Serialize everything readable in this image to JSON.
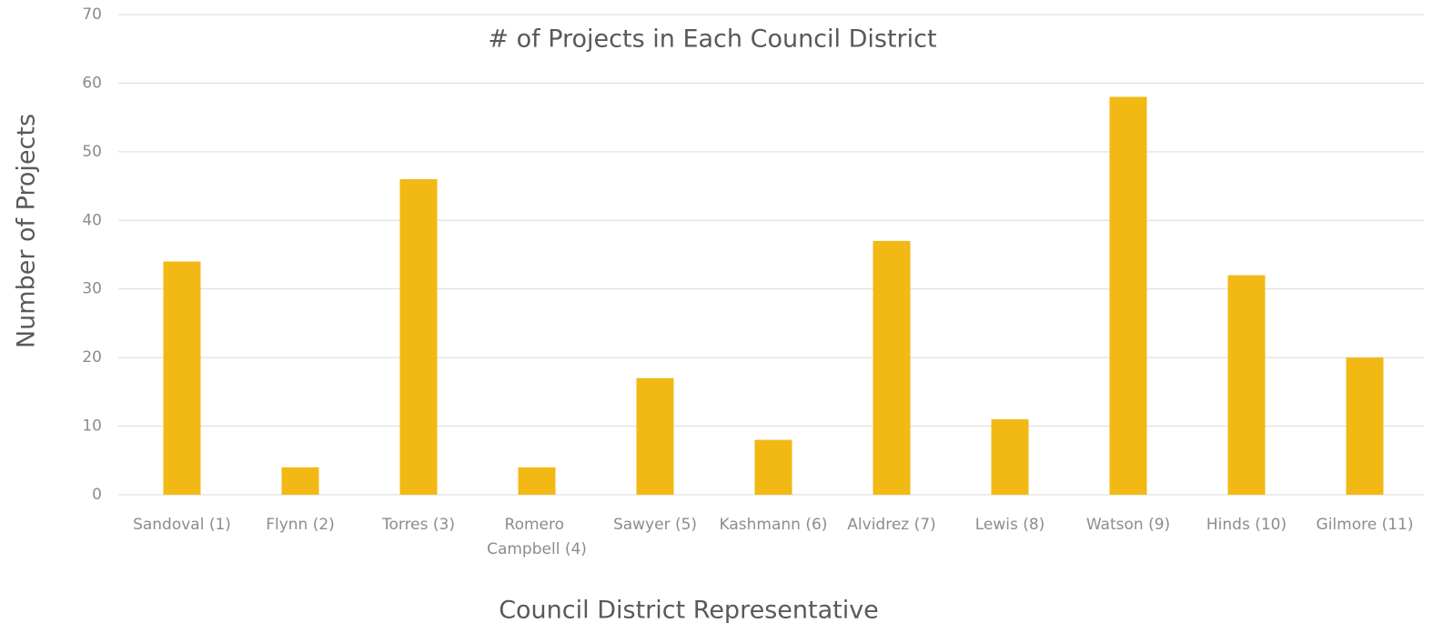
{
  "chart_data": {
    "type": "bar",
    "title": "# of Projects in Each Council District",
    "x_label": "Council District Representative",
    "y_label": "Number of Projects",
    "categories": [
      "Sandoval (1)",
      "Flynn (2)",
      "Torres (3)",
      "Romero Campbell (4)",
      "Sawyer (5)",
      "Kashmann (6)",
      "Alvidrez (7)",
      "Lewis (8)",
      "Watson (9)",
      "Hinds (10)",
      "Gilmore (11)"
    ],
    "values": [
      34,
      4,
      46,
      4,
      17,
      8,
      37,
      11,
      58,
      32,
      20
    ],
    "color": "#f2b914",
    "ylim": [
      0,
      70
    ],
    "yticks": [
      0,
      10,
      20,
      30,
      40,
      50,
      60,
      70
    ],
    "grid": true
  }
}
